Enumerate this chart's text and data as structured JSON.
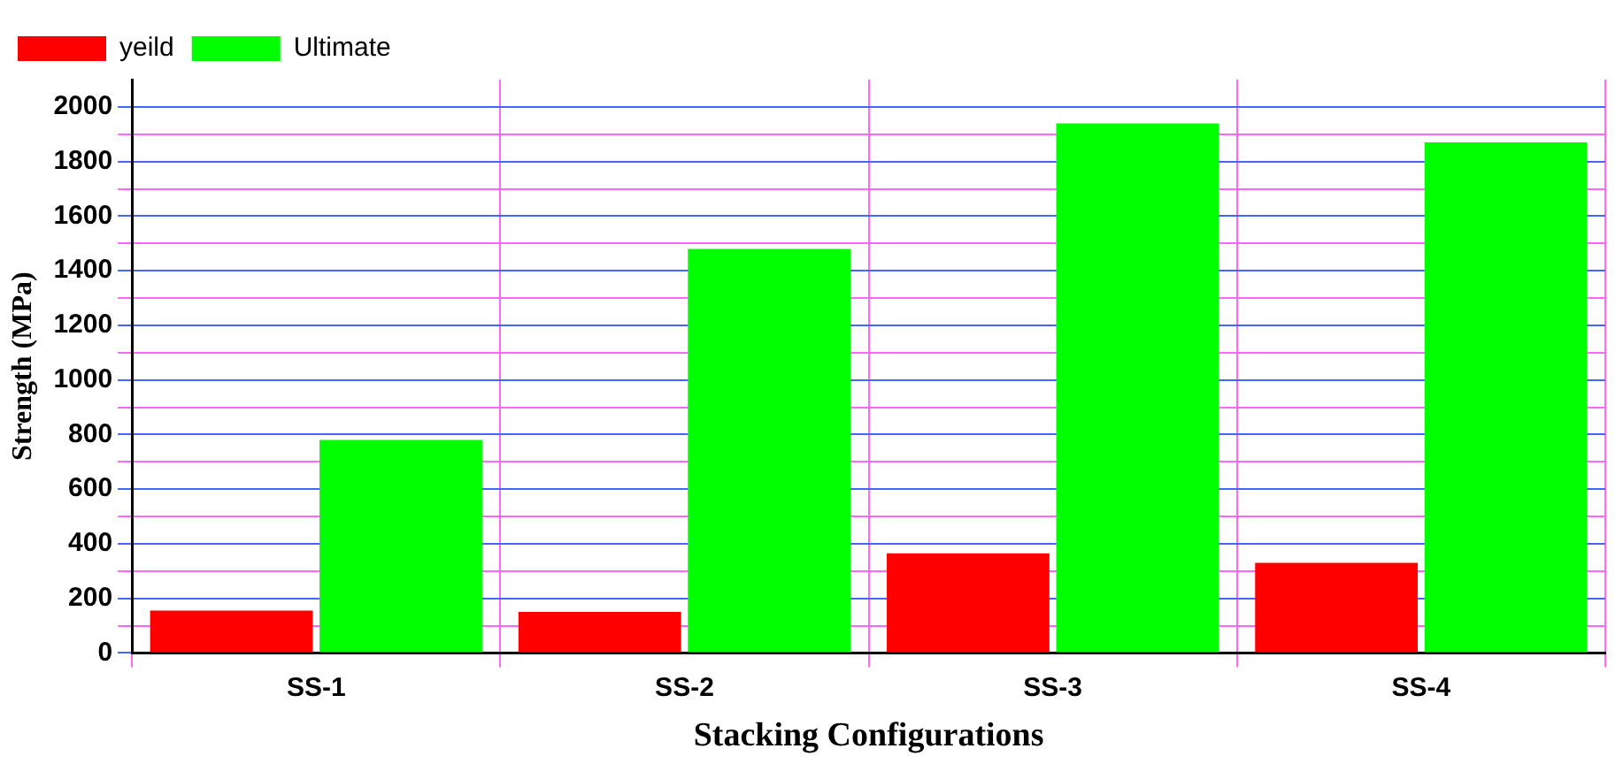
{
  "chart_data": {
    "type": "bar",
    "xlabel": "Stacking Configurations",
    "ylabel": "Strength (MPa)",
    "categories": [
      "SS-1",
      "SS-2",
      "SS-3",
      "SS-4"
    ],
    "series": [
      {
        "name": "yeild",
        "color": "#ff0000",
        "values": [
          155,
          150,
          365,
          330
        ]
      },
      {
        "name": "Ultimate",
        "color": "#00ff00",
        "values": [
          780,
          1480,
          1940,
          1870
        ]
      }
    ],
    "ylim": [
      0,
      2100
    ],
    "yticks": [
      0,
      {
        "value": 100,
        "label": null
      },
      200,
      {
        "value": 300,
        "label": null
      },
      400,
      {
        "value": 500,
        "label": null
      },
      600,
      {
        "value": 700,
        "label": null
      },
      800,
      {
        "value": 900,
        "label": null
      },
      1000,
      {
        "value": 1100,
        "label": null
      },
      1200,
      {
        "value": 1300,
        "label": null
      },
      1400,
      {
        "value": 1500,
        "label": null
      },
      1600,
      {
        "value": 1700,
        "label": null
      },
      1800,
      {
        "value": 1900,
        "label": null
      },
      2000
    ],
    "grid": true,
    "legend": "top left"
  }
}
